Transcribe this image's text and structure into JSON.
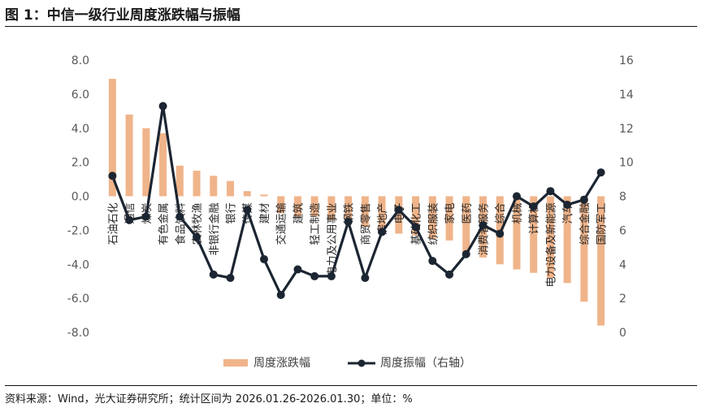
{
  "title": "图 1：中信一级行业周度涨跌幅与振幅",
  "source": "资料来源：Wind，光大证券研究所；统计区间为 2026.01.26-2026.01.30；单位：%",
  "colors": {
    "bar": "#F0B48A",
    "line": "#1C2532",
    "axis_text": "#595959"
  },
  "chart_data": {
    "type": "bar",
    "title": "图 1：中信一级行业周度涨跌幅与振幅",
    "categories": [
      "石油石化",
      "通信",
      "煤炭",
      "有色金属",
      "食品饮料",
      "农林牧渔",
      "非银行金融",
      "银行",
      "传媒",
      "建材",
      "交通运输",
      "建筑",
      "轻工制造",
      "电力及公用事业",
      "钢铁",
      "商贸零售",
      "房地产",
      "电子",
      "基础化工",
      "纺织服装",
      "家电",
      "医药",
      "消费者服务",
      "综合",
      "机械",
      "计算机",
      "电力设备及新能源",
      "汽车",
      "综合金融",
      "国防军工"
    ],
    "series": [
      {
        "name": "周度涨跌幅",
        "axis": "left",
        "type": "bar",
        "values": [
          6.9,
          4.8,
          4.0,
          3.7,
          1.8,
          1.5,
          1.2,
          0.9,
          0.3,
          0.1,
          -1.0,
          -1.2,
          -1.2,
          -1.4,
          -1.6,
          -1.8,
          -2.0,
          -2.2,
          -2.3,
          -2.5,
          -2.6,
          -3.3,
          -3.6,
          -4.0,
          -4.3,
          -4.5,
          -4.8,
          -5.1,
          -6.2,
          -7.6
        ]
      },
      {
        "name": "周度振幅（右轴）",
        "axis": "right",
        "type": "line",
        "values": [
          9.2,
          6.6,
          6.8,
          13.3,
          6.8,
          5.6,
          3.4,
          3.2,
          7.2,
          4.3,
          2.2,
          3.7,
          3.3,
          3.3,
          6.5,
          3.2,
          5.9,
          7.2,
          6.2,
          4.2,
          3.4,
          4.6,
          6.3,
          5.8,
          8.0,
          7.4,
          8.3,
          7.5,
          7.8,
          9.4
        ]
      }
    ],
    "ylim_left": [
      -8.0,
      8.0
    ],
    "yticks_left": [
      "-8.0",
      "-6.0",
      "-4.0",
      "-2.0",
      "0.0",
      "2.0",
      "4.0",
      "6.0",
      "8.0"
    ],
    "ylim_right": [
      0,
      16
    ],
    "yticks_right": [
      "0",
      "2",
      "4",
      "6",
      "8",
      "10",
      "12",
      "14",
      "16"
    ],
    "legend": {
      "position": "bottom",
      "bar_label": "周度涨跌幅",
      "line_label": "周度振幅（右轴）"
    },
    "grid": false
  }
}
